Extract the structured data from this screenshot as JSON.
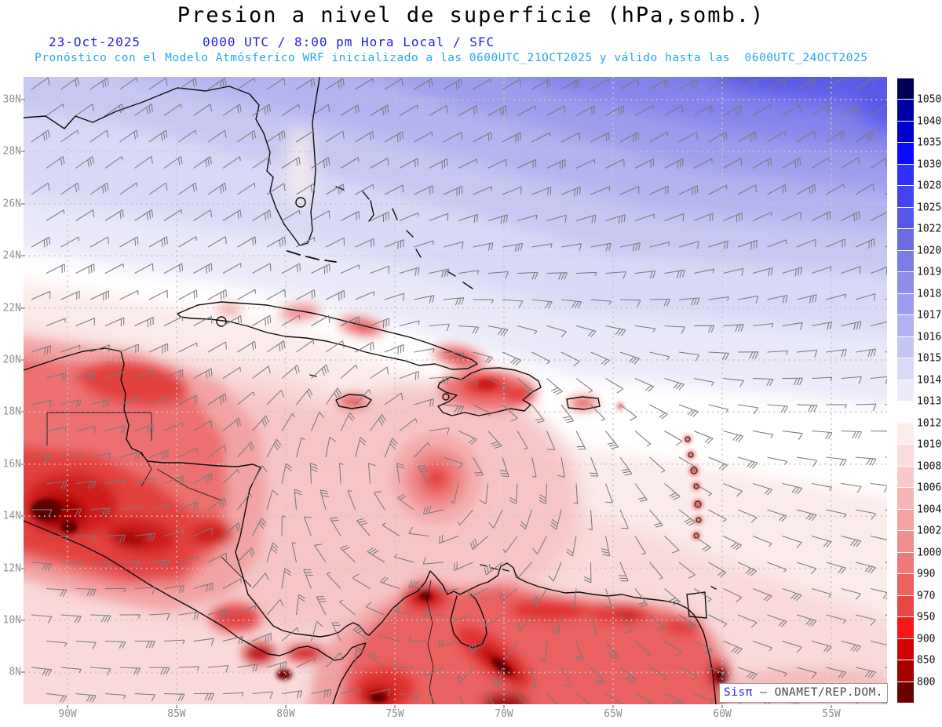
{
  "header": {
    "title": "Presion a nivel de superficie (hPa,somb.)",
    "date": "23-Oct-2025",
    "time_line": "0000 UTC / 8:00 pm Hora Local / SFC",
    "model_line": "Pronóstico con el Modelo Atmósferico WRF inicializado a las 0600UTC_21OCT2025 y válido hasta las  0600UTC_24OCT2025"
  },
  "axes": {
    "lat_labels": [
      "30N",
      "28N",
      "26N",
      "24N",
      "22N",
      "20N",
      "18N",
      "16N",
      "14N",
      "12N",
      "10N",
      "8N"
    ],
    "lon_labels": [
      "90W",
      "85W",
      "80W",
      "75W",
      "70W",
      "65W",
      "60W",
      "55W"
    ]
  },
  "colorbar": {
    "units": "hPa",
    "levels": [
      "1050",
      "1040",
      "1035",
      "1030",
      "1028",
      "1025",
      "1022",
      "1020",
      "1019",
      "1018",
      "1017",
      "1016",
      "1015",
      "1014",
      "1013",
      "1012",
      "1010",
      "1008",
      "1006",
      "1004",
      "1002",
      "1000",
      "990",
      "970",
      "950",
      "900",
      "850",
      "800"
    ],
    "band_colors": [
      "#000058",
      "#0000a2",
      "#0000cf",
      "#0b0bff",
      "#2f2ff7",
      "#4444ef",
      "#5858e8",
      "#6b6be4",
      "#7c7ce6",
      "#8d8dea",
      "#9e9eee",
      "#b2b2f1",
      "#c6c6f5",
      "#dadaf8",
      "#ebebfb",
      "#ffffff",
      "#fdecec",
      "#fbdcdc",
      "#f9caca",
      "#f7b6b6",
      "#f5a2a2",
      "#f28d8d",
      "#ef7878",
      "#ec6060",
      "#e94646",
      "#f81717",
      "#d40202",
      "#a40000",
      "#6a0000"
    ]
  },
  "attribution": {
    "brand": "Sisπ",
    "text": " – ONAMET/REP.DOM."
  },
  "colors": {
    "header_blue": "#2323dd",
    "header_cyan": "#23a7f2",
    "axis_gray": "#909090",
    "barb_gray": "#7a7a7a",
    "grid_gray": "#c6c6c0",
    "coast_black": "#0d0d0d"
  }
}
